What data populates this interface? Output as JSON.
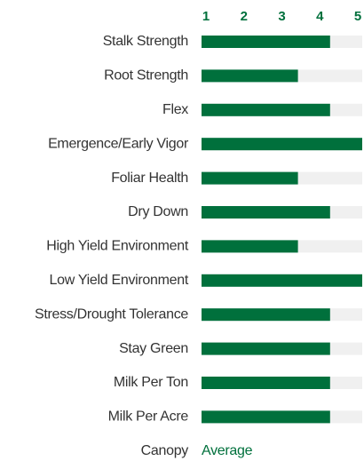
{
  "chart_data": {
    "type": "bar",
    "orientation": "horizontal",
    "categories": [
      "Stalk Strength",
      "Root Strength",
      "Flex",
      "Emergence/Early Vigor",
      "Foliar Health",
      "Dry Down",
      "High Yield Environment",
      "Low Yield Environment",
      "Stress/Drought Tolerance",
      "Stay Green",
      "Milk Per Ton",
      "Milk Per Acre"
    ],
    "values": [
      4,
      3,
      4,
      5,
      3,
      4,
      3,
      5,
      4,
      4,
      4,
      4
    ],
    "color": "#00703c",
    "track_color": "#f0f0f0",
    "xlim": [
      0,
      5
    ],
    "xticks": [
      1,
      2,
      3,
      4,
      5
    ],
    "footer": {
      "label": "Canopy",
      "value": "Average"
    }
  }
}
